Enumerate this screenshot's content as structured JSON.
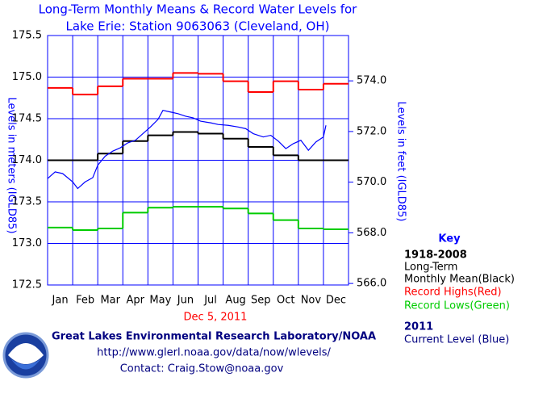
{
  "chart_data": {
    "type": "line",
    "title": [
      "Long-Term Monthly Means & Record Water Levels for",
      "Lake Erie: Station 9063063 (Cleveland, OH)"
    ],
    "ylabel": "Levels in meters (IGLD85)",
    "y2label": "Levels in feet (IGLD85)",
    "date": "Dec 5, 2011",
    "categories": [
      "Jan",
      "Feb",
      "Mar",
      "Apr",
      "May",
      "Jun",
      "Jul",
      "Aug",
      "Sep",
      "Oct",
      "Nov",
      "Dec"
    ],
    "ylim": [
      172.5,
      175.5
    ],
    "yticks": [
      172.5,
      {
        "value": 173,
        "label": "173.0"
      },
      173.5,
      {
        "value": 174,
        "label": "174.0"
      },
      174.5,
      {
        "value": 175,
        "label": "175.0"
      },
      175.5
    ],
    "y2lim": [
      565.94,
      575.79
    ],
    "y2ticks": [
      {
        "value": 566,
        "label": "566.0"
      },
      {
        "value": 568,
        "label": "568.0"
      },
      {
        "value": 570,
        "label": "570.0"
      },
      {
        "value": 572,
        "label": "572.0"
      },
      {
        "value": 574,
        "label": "574.0"
      }
    ],
    "xlim": [
      0,
      12
    ],
    "grid": true,
    "series": [
      {
        "name": "Monthly Mean(Black)",
        "color": "#000000",
        "values": [
          174.0,
          174.0,
          174.08,
          174.23,
          174.3,
          174.34,
          174.32,
          174.26,
          174.16,
          174.06,
          174.0,
          174.0
        ]
      },
      {
        "name": "Record Highs(Red)",
        "color": "#ff0000",
        "values": [
          174.87,
          174.79,
          174.89,
          174.98,
          174.98,
          175.05,
          175.04,
          174.95,
          174.82,
          174.95,
          174.85,
          174.92
        ]
      },
      {
        "name": "Record Lows(Green)",
        "color": "#00cc00",
        "values": [
          173.19,
          173.16,
          173.18,
          173.37,
          173.43,
          173.44,
          173.44,
          173.42,
          173.36,
          173.28,
          173.18,
          173.17
        ]
      },
      {
        "name": "Current Level (Blue)",
        "color": "#0000ff",
        "x": [
          0,
          0.3,
          0.6,
          1.0,
          1.2,
          1.5,
          1.8,
          2.0,
          2.3,
          2.6,
          2.9,
          3.2,
          3.5,
          3.8,
          4.1,
          4.4,
          4.6,
          4.9,
          5.2,
          5.5,
          5.8,
          6.1,
          6.5,
          6.8,
          7.2,
          7.6,
          7.9,
          8.2,
          8.6,
          8.9,
          9.2,
          9.5,
          9.8,
          10.1,
          10.4,
          10.7,
          11.0,
          11.1
        ],
        "values": [
          173.78,
          173.86,
          173.84,
          173.74,
          173.66,
          173.74,
          173.79,
          173.94,
          174.05,
          174.11,
          174.15,
          174.21,
          174.24,
          174.32,
          174.4,
          174.49,
          174.6,
          174.58,
          174.56,
          174.53,
          174.51,
          174.47,
          174.45,
          174.43,
          174.42,
          174.4,
          174.38,
          174.32,
          174.28,
          174.3,
          174.23,
          174.14,
          174.2,
          174.24,
          174.12,
          174.22,
          174.28,
          174.42
        ]
      }
    ],
    "key": {
      "title": "Key",
      "period": "1918-2008",
      "mean_prefix": "Long-Term",
      "year": "2011"
    },
    "footer": [
      "Great Lakes Environmental Research Laboratory/NOAA",
      "http://www.glerl.noaa.gov/data/now/wlevels/",
      "Contact: Craig.Stow@noaa.gov"
    ]
  }
}
